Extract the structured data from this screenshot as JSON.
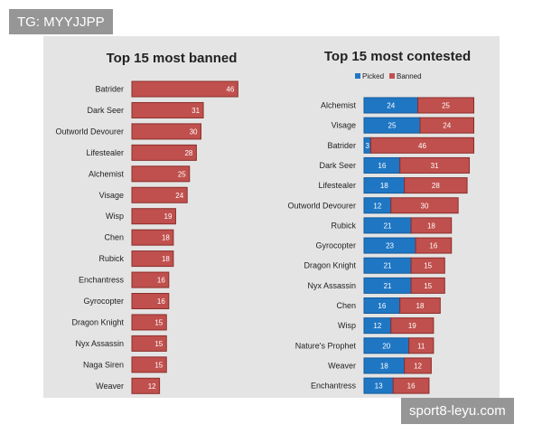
{
  "watermark": {
    "tg": "TG: MYYJJPP",
    "site": "sport8-leyu.com"
  },
  "colors": {
    "banned": "#c0504d",
    "banned_stroke": "#8b2e2b",
    "picked": "#1f77c4",
    "picked_stroke": "#145a99",
    "panel": "#e4e4e4"
  },
  "chart_data": [
    {
      "type": "bar",
      "orientation": "horizontal",
      "title": "Top 15 most banned",
      "categories": [
        "Batrider",
        "Dark Seer",
        "Outworld Devourer",
        "Lifestealer",
        "Alchemist",
        "Visage",
        "Wisp",
        "Chen",
        "Rubick",
        "Enchantress",
        "Gyrocopter",
        "Dragon Knight",
        "Nyx Assassin",
        "Naga Siren",
        "Weaver"
      ],
      "series": [
        {
          "name": "Banned",
          "values": [
            46,
            31,
            30,
            28,
            25,
            24,
            19,
            18,
            18,
            16,
            16,
            15,
            15,
            15,
            12
          ]
        }
      ]
    },
    {
      "type": "bar",
      "orientation": "horizontal",
      "stacked": true,
      "title": "Top 15 most contested",
      "legend": [
        "Picked",
        "Banned"
      ],
      "categories": [
        "Alchemist",
        "Visage",
        "Batrider",
        "Dark Seer",
        "Lifestealer",
        "Outworld Devourer",
        "Rubick",
        "Gyrocopter",
        "Dragon Knight",
        "Nyx Assassin",
        "Chen",
        "Wisp",
        "Nature's Prophet",
        "Weaver",
        "Enchantress"
      ],
      "series": [
        {
          "name": "Picked",
          "values": [
            24,
            25,
            3,
            16,
            18,
            12,
            21,
            23,
            21,
            21,
            16,
            12,
            20,
            18,
            13
          ]
        },
        {
          "name": "Banned",
          "values": [
            25,
            24,
            46,
            31,
            28,
            30,
            18,
            16,
            15,
            15,
            18,
            19,
            11,
            12,
            16
          ]
        }
      ]
    }
  ]
}
